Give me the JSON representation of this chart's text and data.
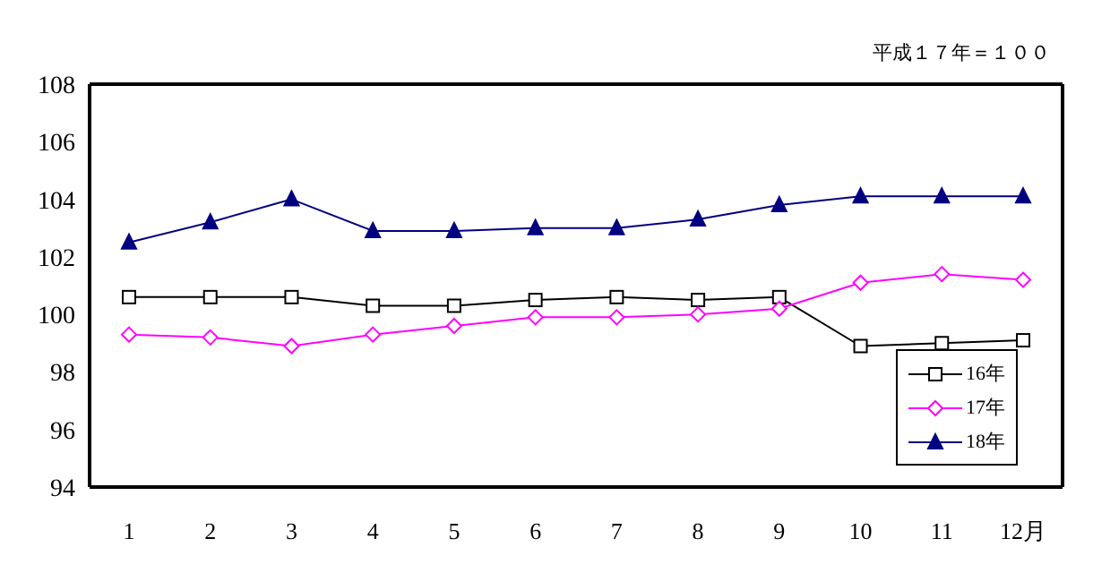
{
  "chart_data": {
    "type": "line",
    "annotations": [
      "平成１７年＝１００"
    ],
    "categories": [
      "1",
      "2",
      "3",
      "4",
      "5",
      "6",
      "7",
      "8",
      "9",
      "10",
      "11",
      "12月"
    ],
    "series": [
      {
        "name": "16年",
        "color": "#000000",
        "marker": "square",
        "values": [
          100.6,
          100.6,
          100.6,
          100.3,
          100.3,
          100.5,
          100.6,
          100.5,
          100.6,
          98.9,
          99.0,
          99.1
        ]
      },
      {
        "name": "17年",
        "color": "#ff00ff",
        "marker": "diamond",
        "values": [
          99.3,
          99.2,
          98.9,
          99.3,
          99.6,
          99.9,
          99.9,
          100.0,
          100.2,
          101.1,
          101.4,
          101.2
        ]
      },
      {
        "name": "18年",
        "color": "#000080",
        "marker": "triangle",
        "values": [
          102.5,
          103.2,
          104.0,
          102.9,
          102.9,
          103.0,
          103.0,
          103.3,
          103.8,
          104.1,
          104.1,
          104.1
        ]
      }
    ],
    "ylim": [
      94,
      108
    ],
    "yticks": [
      94,
      96,
      98,
      100,
      102,
      104,
      106,
      108
    ],
    "grid": false,
    "legend": "bottom right"
  }
}
